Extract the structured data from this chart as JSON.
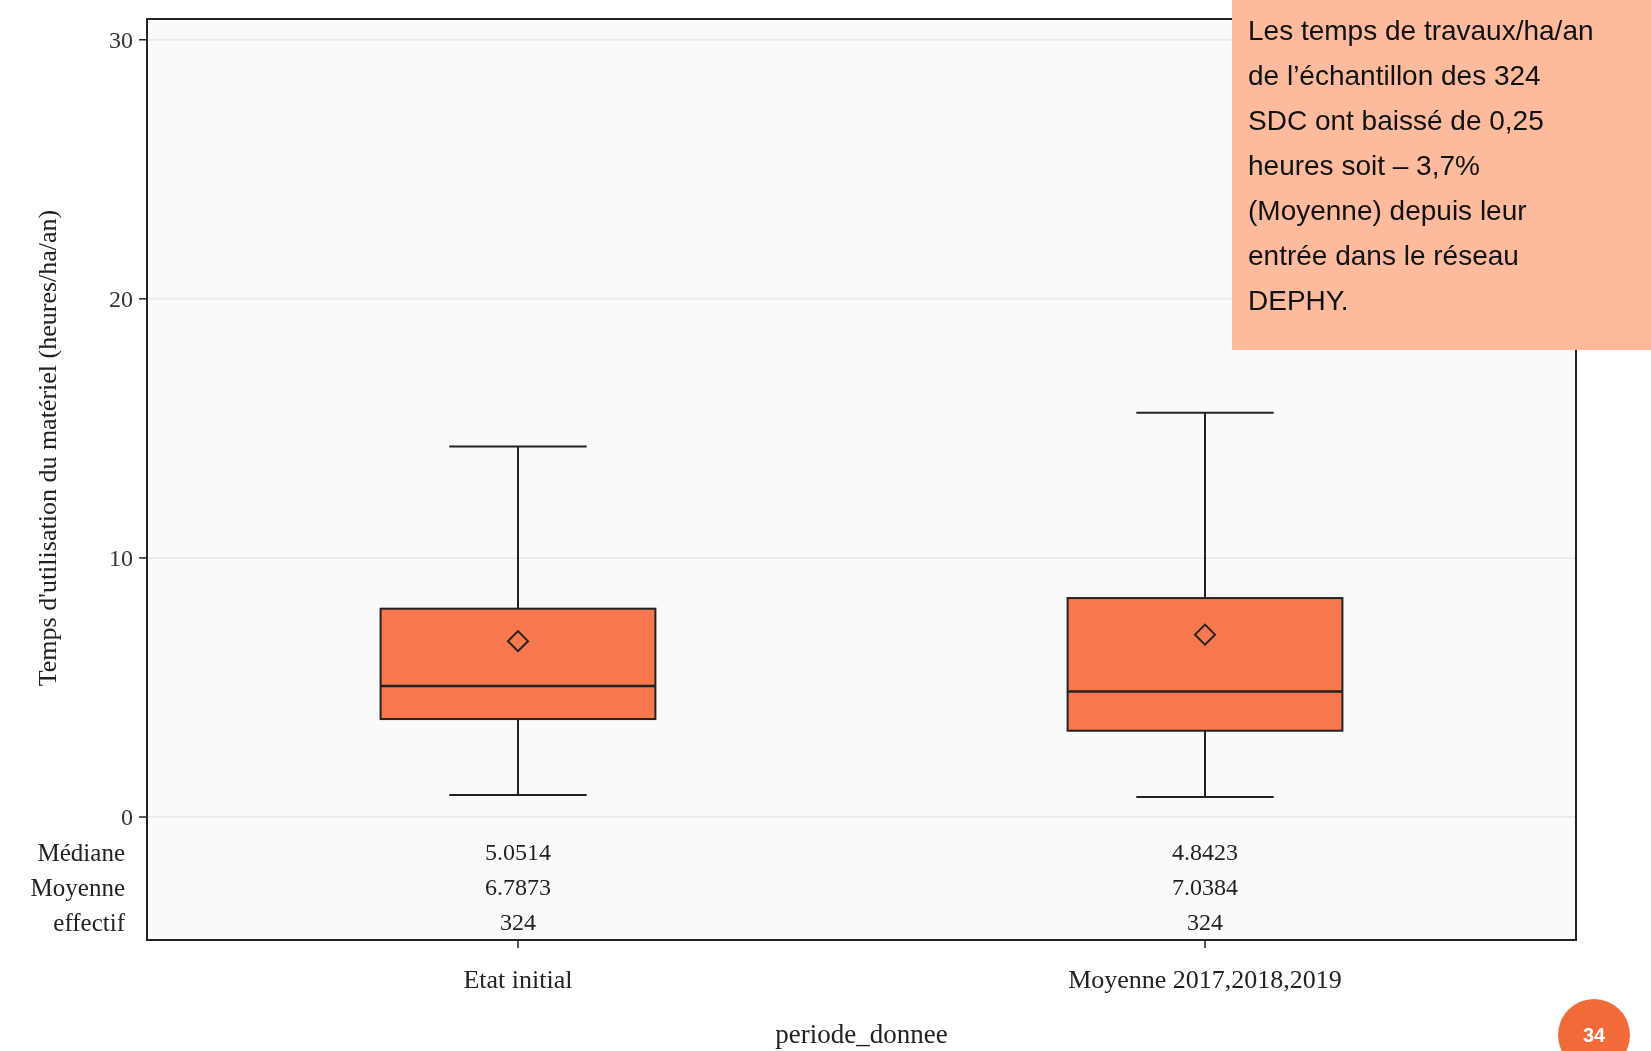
{
  "chart_data": {
    "type": "box",
    "xlabel": "periode_donnee",
    "ylabel": "Temps d'utilisation du matériel (heures/ha/an)",
    "categories": [
      "Etat initial",
      "Moyenne 2017,2018,2019"
    ],
    "series": [
      {
        "color": "#f7774f",
        "boxes": [
          {
            "low": 0.85,
            "q1": 3.78,
            "median": 5.0514,
            "q3": 8.04,
            "high": 14.3,
            "mean": 6.7873
          },
          {
            "low": 0.77,
            "q1": 3.33,
            "median": 4.8423,
            "q3": 8.45,
            "high": 15.6,
            "mean": 7.0384
          }
        ]
      }
    ],
    "ylim": [
      0,
      30.8
    ],
    "yticks": [
      0,
      10,
      20,
      30
    ],
    "grid": "y",
    "annotations": [
      "Médiane",
      "Moyenne",
      "effectif",
      "5.0514",
      "6.7873",
      "324",
      "4.8423",
      "7.0384",
      "324",
      "Les temps de travaux/ha/an de l’échantillon des 324 SDC ont baissé de 0,25 heures soit  – 3,7% (Moyenne) depuis leur entrée dans le réseau DEPHY.",
      "34"
    ]
  }
}
